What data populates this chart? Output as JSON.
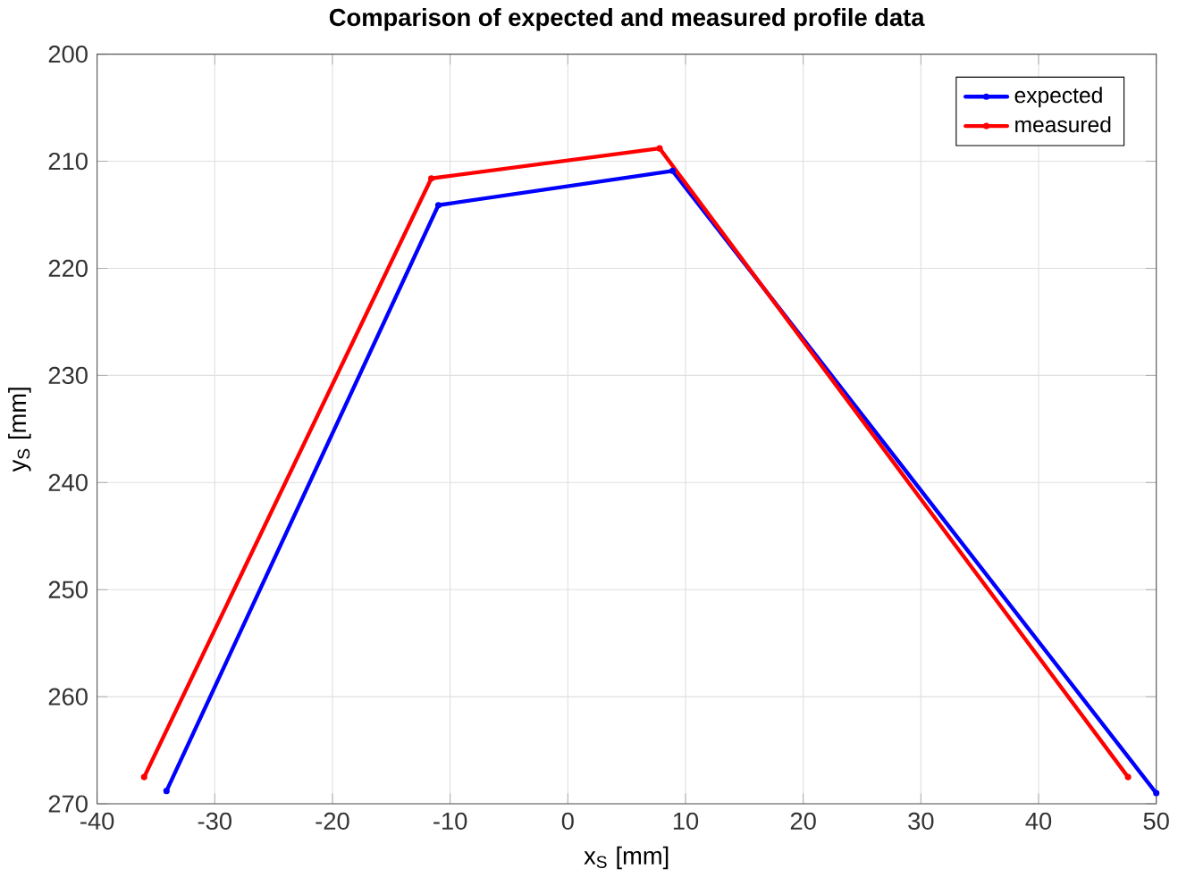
{
  "chart_data": {
    "type": "line",
    "title": "Comparison of expected and measured profile data",
    "xlabel": "x$_{S}$ [mm]",
    "ylabel": "y$_{S}$ [mm]",
    "series": [
      {
        "name": "expected",
        "color": "#0000ff",
        "x": [
          -34.1,
          -11.0,
          8.9,
          50
        ],
        "values": [
          268.8,
          214.1,
          210.9,
          269
        ]
      },
      {
        "name": "measured",
        "color": "#ff0000",
        "x": [
          -36.0,
          -11.6,
          7.8,
          47.6
        ],
        "values": [
          267.5,
          211.6,
          208.8,
          267.5
        ]
      }
    ],
    "xlim": [
      -40,
      50
    ],
    "ylim": [
      270,
      200
    ],
    "xticks": [
      -40,
      -30,
      -20,
      -10,
      0,
      10,
      20,
      30,
      40,
      50
    ],
    "yticks": [
      200,
      210,
      220,
      230,
      240,
      250,
      260,
      270
    ],
    "grid": true,
    "legend": "top right",
    "marker": "circle",
    "line_style": "solid"
  }
}
